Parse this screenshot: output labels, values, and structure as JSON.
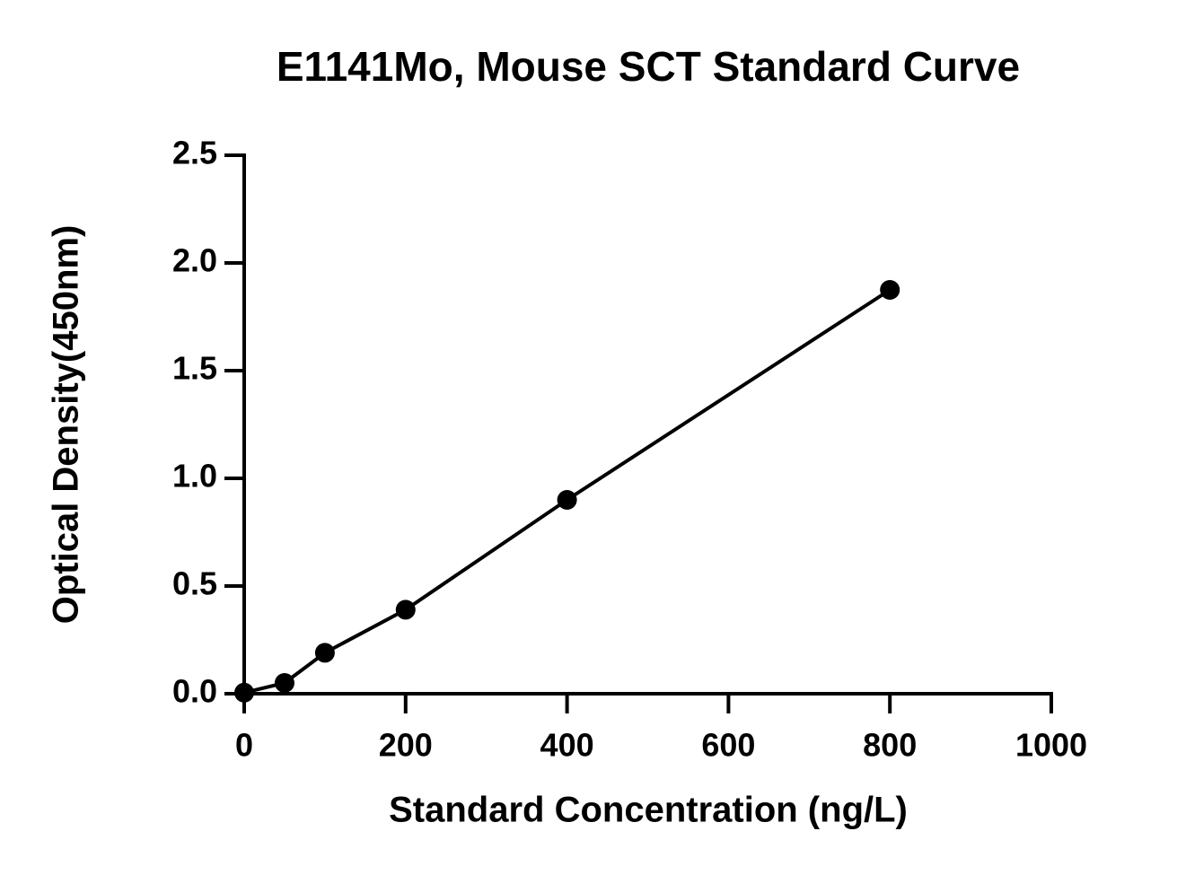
{
  "chart_data": {
    "type": "scatter",
    "title": "E1141Mo, Mouse SCT Standard Curve",
    "x_label": "Standard Concentration (ng/L)",
    "y_label": "Optical Density(450nm)",
    "x": [
      0,
      50,
      100,
      200,
      400,
      800
    ],
    "values": [
      0.005,
      0.05,
      0.19,
      0.39,
      0.9,
      1.875
    ],
    "color": "#000000",
    "line": true,
    "xlim": [
      0,
      1000
    ],
    "xticks": [
      0,
      200,
      400,
      600,
      800,
      1000
    ],
    "ylim": [
      0,
      2.5
    ],
    "yticks": [
      {
        "value": 0,
        "label": "0.0"
      },
      0.5,
      {
        "value": 1,
        "label": "1.0"
      },
      1.5,
      {
        "value": 2,
        "label": "2.0"
      },
      2.5
    ],
    "grid": false
  }
}
